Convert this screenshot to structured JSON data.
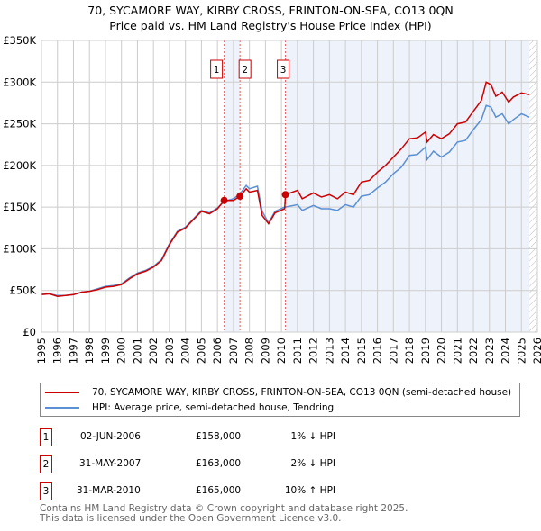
{
  "title": "70, SYCAMORE WAY, KIRBY CROSS, FRINTON-ON-SEA, CO13 0QN",
  "subtitle": "Price paid vs. HM Land Registry's House Price Index (HPI)",
  "chart_data": {
    "type": "line",
    "xlim": [
      1995,
      2026
    ],
    "ylim": [
      0,
      350000
    ],
    "x_ticks": [
      "1995",
      "1996",
      "1997",
      "1998",
      "1999",
      "2000",
      "2001",
      "2002",
      "2003",
      "2004",
      "2005",
      "2006",
      "2007",
      "2008",
      "2009",
      "2010",
      "2011",
      "2012",
      "2013",
      "2014",
      "2015",
      "2016",
      "2017",
      "2018",
      "2019",
      "2020",
      "2021",
      "2022",
      "2023",
      "2024",
      "2025",
      "2026"
    ],
    "y_ticks": [
      {
        "v": 0,
        "label": "£0"
      },
      {
        "v": 50000,
        "label": "£50K"
      },
      {
        "v": 100000,
        "label": "£100K"
      },
      {
        "v": 150000,
        "label": "£150K"
      },
      {
        "v": 200000,
        "label": "£200K"
      },
      {
        "v": 250000,
        "label": "£250K"
      },
      {
        "v": 300000,
        "label": "£300K"
      },
      {
        "v": 350000,
        "label": "£350K"
      }
    ],
    "series": [
      {
        "name": "70, SYCAMORE WAY, KIRBY CROSS, FRINTON-ON-SEA, CO13 0QN (semi-detached house)",
        "color": "#cc0000",
        "x": [
          1995,
          1995.5,
          1996,
          1996.5,
          1997,
          1997.5,
          1998,
          1998.5,
          1999,
          1999.5,
          2000,
          2000.5,
          2001,
          2001.5,
          2002,
          2002.5,
          2003,
          2003.5,
          2004,
          2004.5,
          2005,
          2005.5,
          2006,
          2006.42,
          2007,
          2007.41,
          2007.8,
          2008,
          2008.5,
          2008.8,
          2009.2,
          2009.6,
          2010.2,
          2010.25,
          2011,
          2011.3,
          2012,
          2012.5,
          2013,
          2013.5,
          2014,
          2014.5,
          2015,
          2015.5,
          2016,
          2016.5,
          2017,
          2017.5,
          2018,
          2018.5,
          2019,
          2019.1,
          2019.5,
          2020,
          2020.5,
          2021,
          2021.5,
          2022,
          2022.5,
          2022.8,
          2023.1,
          2023.4,
          2023.8,
          2024.2,
          2024.5,
          2025,
          2025.5
        ],
        "y": [
          45000,
          46000,
          43000,
          44000,
          45000,
          48000,
          49000,
          51000,
          54000,
          55000,
          57000,
          64000,
          70000,
          73000,
          78000,
          86000,
          105000,
          120000,
          125000,
          135000,
          145000,
          142000,
          148000,
          158000,
          158000,
          163000,
          172000,
          168000,
          170000,
          140000,
          130000,
          143000,
          148000,
          165000,
          170000,
          160000,
          167000,
          162000,
          165000,
          160000,
          168000,
          165000,
          180000,
          182000,
          192000,
          200000,
          210000,
          220000,
          232000,
          233000,
          240000,
          228000,
          237000,
          232000,
          238000,
          250000,
          252000,
          265000,
          278000,
          300000,
          297000,
          283000,
          288000,
          276000,
          282000,
          287000,
          285000
        ]
      },
      {
        "name": "HPI: Average price, semi-detached house, Tendring",
        "color": "#5b8fd4",
        "x": [
          1995,
          1995.5,
          1996,
          1996.5,
          1997,
          1997.5,
          1998,
          1998.5,
          1999,
          1999.5,
          2000,
          2000.5,
          2001,
          2001.5,
          2002,
          2002.5,
          2003,
          2003.5,
          2004,
          2004.5,
          2005,
          2005.5,
          2006,
          2006.42,
          2007,
          2007.41,
          2007.8,
          2008,
          2008.5,
          2008.8,
          2009.2,
          2009.6,
          2010.2,
          2010.25,
          2011,
          2011.3,
          2012,
          2012.5,
          2013,
          2013.5,
          2014,
          2014.5,
          2015,
          2015.5,
          2016,
          2016.5,
          2017,
          2017.5,
          2018,
          2018.5,
          2019,
          2019.1,
          2019.5,
          2020,
          2020.5,
          2021,
          2021.5,
          2022,
          2022.5,
          2022.8,
          2023.1,
          2023.4,
          2023.8,
          2024.2,
          2024.5,
          2025,
          2025.5
        ],
        "y": [
          46000,
          46000,
          44000,
          44000,
          45000,
          48000,
          49000,
          52000,
          55000,
          56000,
          58000,
          65000,
          71000,
          74000,
          79000,
          87000,
          106000,
          121000,
          126000,
          136000,
          146000,
          143000,
          149000,
          157000,
          160000,
          166000,
          176000,
          172000,
          175000,
          145000,
          131000,
          145000,
          150000,
          150000,
          153000,
          146000,
          152000,
          148000,
          148000,
          146000,
          153000,
          150000,
          163000,
          165000,
          173000,
          180000,
          190000,
          198000,
          212000,
          213000,
          222000,
          207000,
          217000,
          210000,
          216000,
          228000,
          230000,
          243000,
          255000,
          272000,
          270000,
          258000,
          262000,
          250000,
          255000,
          262000,
          258000
        ]
      }
    ],
    "sales": [
      {
        "id": "1",
        "x": 2006.42,
        "y": 158000,
        "date": "02-JUN-2006",
        "price": "£158,000",
        "hpi": "1% ↓ HPI"
      },
      {
        "id": "2",
        "x": 2007.41,
        "y": 163000,
        "date": "31-MAY-2007",
        "price": "£163,000",
        "hpi": "2% ↓ HPI"
      },
      {
        "id": "3",
        "x": 2010.25,
        "y": 165000,
        "date": "31-MAR-2010",
        "price": "£165,000",
        "hpi": "10% ↑ HPI"
      }
    ],
    "forecast_from": 2025.5
  },
  "footer": [
    "Contains HM Land Registry data © Crown copyright and database right 2025.",
    "This data is licensed under the Open Government Licence v3.0."
  ]
}
